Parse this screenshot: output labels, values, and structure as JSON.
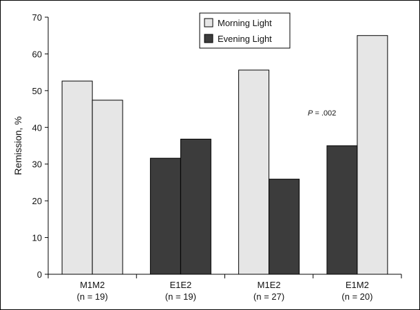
{
  "chart_data": {
    "type": "bar",
    "categories": [
      {
        "name": "M1M2",
        "sub": "(n = 19)"
      },
      {
        "name": "E1E2",
        "sub": "(n = 19)"
      },
      {
        "name": "M1E2",
        "sub": "(n = 27)"
      },
      {
        "name": "E1M2",
        "sub": "(n = 20)"
      }
    ],
    "groups": [
      [
        {
          "series": 0,
          "value": 52.6
        },
        {
          "series": 0,
          "value": 47.4
        }
      ],
      [
        {
          "series": 1,
          "value": 31.6
        },
        {
          "series": 1,
          "value": 36.8
        }
      ],
      [
        {
          "series": 0,
          "value": 55.6
        },
        {
          "series": 1,
          "value": 25.9
        }
      ],
      [
        {
          "series": 1,
          "value": 35.0
        },
        {
          "series": 0,
          "value": 65.0
        }
      ]
    ],
    "series": [
      {
        "name": "Morning Light",
        "color": "#e6e6e6"
      },
      {
        "name": "Evening Light",
        "color": "#3c3c3c"
      }
    ],
    "ylabel": "Remission, %",
    "ylim": [
      0,
      70
    ],
    "yticks": [
      0,
      10,
      20,
      30,
      40,
      50,
      60,
      70
    ],
    "grid": false,
    "legend_position": "top-center",
    "annotation": {
      "italic": "P",
      "text": " = .002"
    }
  }
}
